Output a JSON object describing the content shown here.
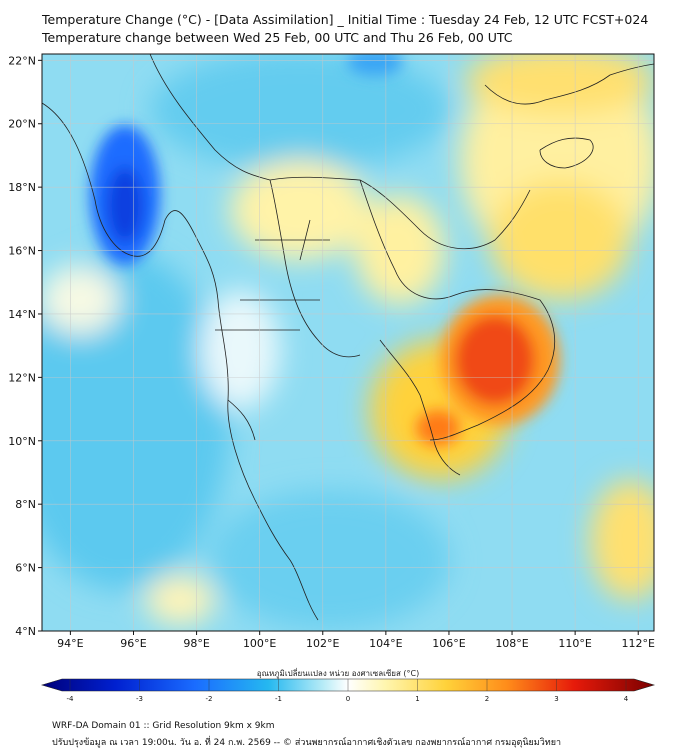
{
  "title": {
    "line1": "Temperature Change (°C) - [Data Assimilation] _ Initial Time : Tuesday 24 Feb, 12 UTC FCST+024",
    "line2": "Temperature change between Wed 25 Feb, 00 UTC and Thu 26 Feb, 00 UTC"
  },
  "map": {
    "lat_labels": [
      "22°N",
      "20°N",
      "18°N",
      "16°N",
      "14°N",
      "12°N",
      "10°N",
      "8°N",
      "6°N",
      "4°N"
    ],
    "lon_labels": [
      "94°E",
      "96°E",
      "98°E",
      "100°E",
      "102°E",
      "104°E",
      "106°E",
      "108°E",
      "110°E",
      "112°E"
    ],
    "lat_range": [
      4,
      22.2
    ],
    "lon_range": [
      93.1,
      112.5
    ],
    "warm_spot_text": "warm anomaly over Cambodia / southern Vietnam",
    "cold_spot_text": "cold anomaly over western Myanmar"
  },
  "colorbar": {
    "title": "อุณหภูมิเปลี่ยนแปลง หน่วย องศาเซลเซียส (°C)",
    "ticks": [
      "-4",
      "-3",
      "-2",
      "-1",
      "0",
      "1",
      "2",
      "3",
      "4"
    ],
    "min": -4,
    "max": 4,
    "colors": [
      "#00007a",
      "#0020d0",
      "#1a6cff",
      "#25b8f0",
      "#b8ecf7",
      "#ffffff",
      "#fff6b0",
      "#ffd23a",
      "#ff8c1a",
      "#e61a0a",
      "#7a0000"
    ]
  },
  "footer": {
    "line1": "WRF-DA Domain 01 :: Grid Resolution 9km x 9km",
    "line2": "ปรับปรุงข้อมูล ณ เวลา 19:00น. วัน อ. ที่ 24 ก.พ. 2569 -- © ส่วนพยากรณ์อากาศเชิงตัวเลข กองพยากรณ์อากาศ กรมอุตุนิยมวิทยา"
  }
}
